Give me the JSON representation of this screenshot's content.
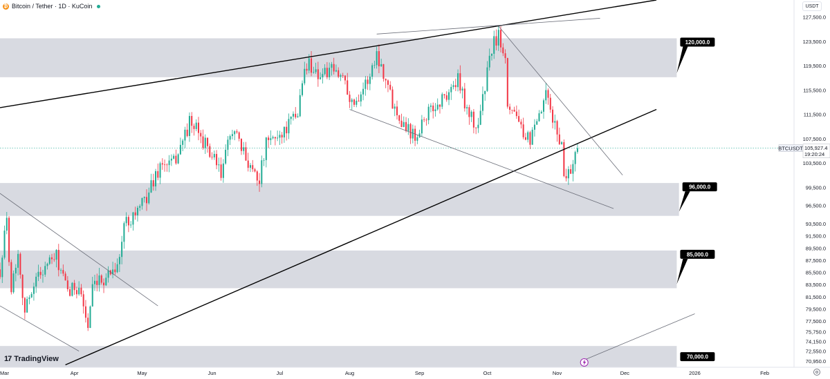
{
  "header": {
    "title": "Bitcoin / Tether · 1D · KuCoin",
    "logo_icon": "bitcoin-icon",
    "status_color": "#22ab94"
  },
  "currency_button": "USDT",
  "branding": {
    "text": "TradingView",
    "mark": "17"
  },
  "symbol": "BTCUSDT",
  "last_price": "105,927.4",
  "countdown": "19:20:24",
  "colors": {
    "up": "#22ab94",
    "down": "#f23645",
    "zone": "#d1d4dc",
    "trendline": "#000000",
    "channel": "#6a6d78"
  },
  "chart_data": {
    "type": "candlestick",
    "title": "Bitcoin / Tether · 1D · KuCoin",
    "y_axis": {
      "range": [
        69900,
        130300
      ],
      "ticks": [
        "127,500.0",
        "123,500.0",
        "119,500.0",
        "115,500.0",
        "111,500.0",
        "107,500.0",
        "103,500.0",
        "99,500.0",
        "96,500.0",
        "93,500.0",
        "91,500.0",
        "89,500.0",
        "87,500.0",
        "85,500.0",
        "83,500.0",
        "81,500.0",
        "79,500.0",
        "77,500.0",
        "75,750.0",
        "74,150.0",
        "72,550.0",
        "70,950.0"
      ]
    },
    "x_axis": {
      "range": [
        "2025-02-27",
        "2026-02-14"
      ],
      "ticks": [
        {
          "date": "2025-03-01",
          "label": "Mar"
        },
        {
          "date": "2025-04-01",
          "label": "Apr"
        },
        {
          "date": "2025-05-01",
          "label": "May"
        },
        {
          "date": "2025-06-01",
          "label": "Jun"
        },
        {
          "date": "2025-07-01",
          "label": "Jul"
        },
        {
          "date": "2025-08-01",
          "label": "Aug"
        },
        {
          "date": "2025-09-01",
          "label": "Sep"
        },
        {
          "date": "2025-10-01",
          "label": "Oct"
        },
        {
          "date": "2025-11-01",
          "label": "Nov"
        },
        {
          "date": "2025-12-01",
          "label": "Dec"
        },
        {
          "date": "2026-01-01",
          "label": "2026"
        },
        {
          "date": "2026-02-01",
          "label": "Feb"
        }
      ]
    },
    "price_path": [
      [
        "2025-02-27",
        86000
      ],
      [
        "2025-03-02",
        94000
      ],
      [
        "2025-03-04",
        83000
      ],
      [
        "2025-03-07",
        89000
      ],
      [
        "2025-03-10",
        79000
      ],
      [
        "2025-03-14",
        84000
      ],
      [
        "2025-03-19",
        86500
      ],
      [
        "2025-03-24",
        88000
      ],
      [
        "2025-03-29",
        82000
      ],
      [
        "2025-04-03",
        83500
      ],
      [
        "2025-04-07",
        76500
      ],
      [
        "2025-04-09",
        82500
      ],
      [
        "2025-04-14",
        84500
      ],
      [
        "2025-04-21",
        87500
      ],
      [
        "2025-04-23",
        93500
      ],
      [
        "2025-05-01",
        96500
      ],
      [
        "2025-05-09",
        103000
      ],
      [
        "2025-05-15",
        103500
      ],
      [
        "2025-05-22",
        110000
      ],
      [
        "2025-05-26",
        108500
      ],
      [
        "2025-06-01",
        104500
      ],
      [
        "2025-06-05",
        101500
      ],
      [
        "2025-06-10",
        109500
      ],
      [
        "2025-06-14",
        105500
      ],
      [
        "2025-06-22",
        101000
      ],
      [
        "2025-06-25",
        106500
      ],
      [
        "2025-07-02",
        108500
      ],
      [
        "2025-07-09",
        111500
      ],
      [
        "2025-07-11",
        117500
      ],
      [
        "2025-07-14",
        120000
      ],
      [
        "2025-07-18",
        118000
      ],
      [
        "2025-07-24",
        118500
      ],
      [
        "2025-07-30",
        117500
      ],
      [
        "2025-08-02",
        113000
      ],
      [
        "2025-08-09",
        117000
      ],
      [
        "2025-08-13",
        121500
      ],
      [
        "2025-08-17",
        117500
      ],
      [
        "2025-08-20",
        113500
      ],
      [
        "2025-08-25",
        110000
      ],
      [
        "2025-08-30",
        108000
      ],
      [
        "2025-09-03",
        111000
      ],
      [
        "2025-09-10",
        113500
      ],
      [
        "2025-09-18",
        117000
      ],
      [
        "2025-09-22",
        112500
      ],
      [
        "2025-09-26",
        109000
      ],
      [
        "2025-09-29",
        114000
      ],
      [
        "2025-10-03",
        122500
      ],
      [
        "2025-10-06",
        124500
      ],
      [
        "2025-10-09",
        121500
      ],
      [
        "2025-10-10",
        113500
      ],
      [
        "2025-10-15",
        111000
      ],
      [
        "2025-10-17",
        106500
      ],
      [
        "2025-10-22",
        108500
      ],
      [
        "2025-10-27",
        114500
      ],
      [
        "2025-10-31",
        109500
      ],
      [
        "2025-11-03",
        106500
      ],
      [
        "2025-11-04",
        101500
      ],
      [
        "2025-11-07",
        102500
      ],
      [
        "2025-11-10",
        105927
      ]
    ],
    "zones": [
      {
        "low": 117600,
        "high": 124000,
        "end": "2025-12-24",
        "label": "120,000.0"
      },
      {
        "low": 94800,
        "high": 100200,
        "end": "2025-12-25",
        "label": "96,000.0"
      },
      {
        "low": 82900,
        "high": 89100,
        "end": "2025-12-24",
        "label": "85,000.0"
      },
      {
        "low": 69900,
        "high": 73400,
        "end": "2025-12-24",
        "label": "70,000.0"
      }
    ],
    "trendlines": [
      {
        "role": "support",
        "weight": "heavy",
        "from": [
          "2025-03-28",
          70300
        ],
        "to": [
          "2025-12-15",
          112300
        ]
      },
      {
        "role": "resistance",
        "weight": "heavy",
        "from": [
          "2025-02-27",
          112600
        ],
        "to": [
          "2025-12-15",
          130300
        ]
      },
      {
        "role": "falling-wedge-top",
        "weight": "thin",
        "from": [
          "2025-10-06",
          126000
        ],
        "to": [
          "2025-11-30",
          101500
        ]
      },
      {
        "role": "falling-wedge-bottom",
        "weight": "thin",
        "from": [
          "2025-08-01",
          112300
        ],
        "to": [
          "2025-11-26",
          96000
        ]
      },
      {
        "role": "channel-top",
        "weight": "thin",
        "from": [
          "2025-08-13",
          124700
        ],
        "to": [
          "2025-11-20",
          127300
        ]
      },
      {
        "role": "falling-channel",
        "weight": "thin",
        "from": [
          "2025-02-27",
          98500
        ],
        "to": [
          "2025-05-08",
          80000
        ]
      },
      {
        "role": "falling-channel",
        "weight": "thin",
        "from": [
          "2025-02-27",
          80000
        ],
        "to": [
          "2025-04-03",
          72550
        ]
      },
      {
        "role": "projection",
        "weight": "thin",
        "from": [
          "2025-11-12",
          70950
        ],
        "to": [
          "2026-01-01",
          78700
        ]
      }
    ]
  }
}
